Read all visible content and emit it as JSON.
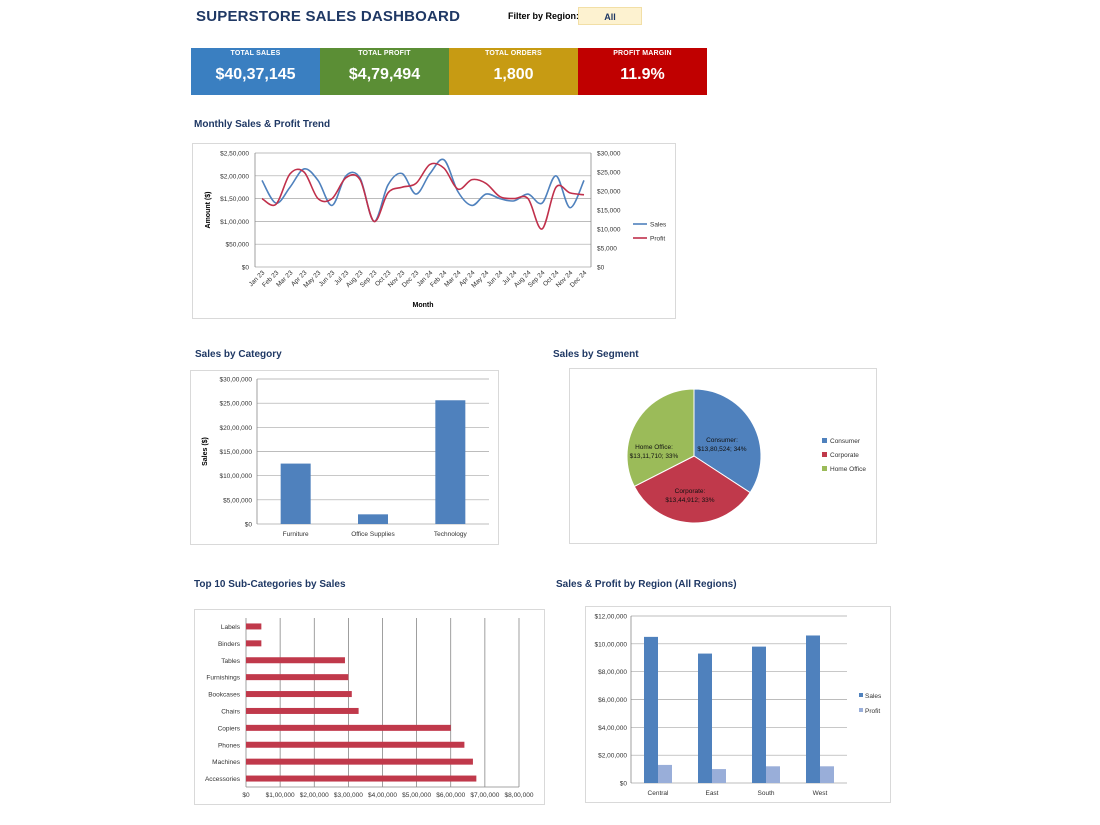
{
  "header": {
    "title": "SUPERSTORE SALES DASHBOARD",
    "filter_label": "Filter by Region:",
    "filter_value": "All"
  },
  "kpis": [
    {
      "label": "TOTAL SALES",
      "value": "$40,37,145",
      "color": "#3a7fc1"
    },
    {
      "label": "TOTAL PROFIT",
      "value": "$4,79,494",
      "color": "#5b8e35"
    },
    {
      "label": "TOTAL ORDERS",
      "value": "1,800",
      "color": "#c79b13"
    },
    {
      "label": "PROFIT MARGIN",
      "value": "11.9%",
      "color": "#c00000"
    }
  ],
  "chart_data": [
    {
      "id": "trend",
      "type": "line",
      "title": "Monthly Sales & Profit Trend",
      "xlabel": "Month",
      "ylabel": "Amount ($)",
      "categories": [
        "Jan 23",
        "Feb 23",
        "Mar 23",
        "Apr 23",
        "May 23",
        "Jun 23",
        "Jul 23",
        "Aug 23",
        "Sep 23",
        "Oct 23",
        "Nov 23",
        "Dec 23",
        "Jan 24",
        "Feb 24",
        "Mar 24",
        "Apr 24",
        "May 24",
        "Jun 24",
        "Jul 24",
        "Aug 24",
        "Sep 24",
        "Oct 24",
        "Nov 24",
        "Dec 24"
      ],
      "y_ticks": [
        "$0",
        "$50,000",
        "$1,00,000",
        "$1,50,000",
        "$2,00,000",
        "$2,50,000"
      ],
      "y2_ticks": [
        "$0",
        "$5,000",
        "$10,000",
        "$15,000",
        "$20,000",
        "$25,000",
        "$30,000"
      ],
      "ylim": [
        0,
        250000
      ],
      "y2lim": [
        0,
        30000
      ],
      "series": [
        {
          "name": "Sales",
          "axis": "left",
          "color": "#4f81bd",
          "values": [
            190000,
            140000,
            175000,
            215000,
            190000,
            135000,
            200000,
            195000,
            100000,
            180000,
            205000,
            160000,
            205000,
            235000,
            165000,
            135000,
            160000,
            150000,
            145000,
            160000,
            140000,
            200000,
            130000,
            190000
          ]
        },
        {
          "name": "Profit",
          "axis": "right",
          "color": "#c0304b",
          "values": [
            18000,
            16500,
            24500,
            25000,
            18000,
            18000,
            23500,
            23000,
            12000,
            19500,
            21000,
            22000,
            27000,
            26000,
            20500,
            23000,
            22000,
            18500,
            18000,
            18000,
            10000,
            21000,
            19500,
            19000
          ]
        }
      ],
      "legend": "right"
    },
    {
      "id": "category",
      "type": "bar",
      "title": "Sales by Category",
      "ylabel": "Sales ($)",
      "categories": [
        "Furniture",
        "Office Supplies",
        "Technology"
      ],
      "values": [
        1250000,
        200000,
        2560000
      ],
      "y_ticks": [
        "$0",
        "$5,00,000",
        "$10,00,000",
        "$15,00,000",
        "$20,00,000",
        "$25,00,000",
        "$30,00,000"
      ],
      "ylim": [
        0,
        3000000
      ],
      "color": "#4f81bd"
    },
    {
      "id": "segment",
      "type": "pie",
      "title": "Sales by Segment",
      "slices": [
        {
          "name": "Consumer",
          "value": 1380524,
          "label": "Consumer:",
          "label2": "$13,80,524; 34%",
          "color": "#4f81bd"
        },
        {
          "name": "Corporate",
          "value": 1344912,
          "label": "Corporate:",
          "label2": "$13,44,912; 33%",
          "color": "#c0394b"
        },
        {
          "name": "Home Office",
          "value": 1311710,
          "label": "Home Office:",
          "label2": "$13,11,710; 33%",
          "color": "#9bbb59"
        }
      ],
      "legend": "right"
    },
    {
      "id": "subcat",
      "type": "bar",
      "orientation": "horizontal",
      "title": "Top 10 Sub-Categories by Sales",
      "categories": [
        "Labels",
        "Binders",
        "Tables",
        "Furnishings",
        "Bookcases",
        "Chairs",
        "Copiers",
        "Phones",
        "Machines",
        "Accessories"
      ],
      "values": [
        45000,
        45000,
        290000,
        300000,
        310000,
        330000,
        600000,
        640000,
        665000,
        675000
      ],
      "x_ticks": [
        "$0",
        "$1,00,000",
        "$2,00,000",
        "$3,00,000",
        "$4,00,000",
        "$5,00,000",
        "$6,00,000",
        "$7,00,000",
        "$8,00,000"
      ],
      "xlim": [
        0,
        800000
      ],
      "color": "#c0394b"
    },
    {
      "id": "region",
      "type": "bar",
      "title": "Sales & Profit by Region (All Regions)",
      "categories": [
        "Central",
        "East",
        "South",
        "West"
      ],
      "series": [
        {
          "name": "Sales",
          "color": "#4f81bd",
          "values": [
            1050000,
            930000,
            980000,
            1060000
          ]
        },
        {
          "name": "Profit",
          "color": "#99aed9",
          "values": [
            130000,
            100000,
            120000,
            120000
          ]
        }
      ],
      "y_ticks": [
        "$0",
        "$2,00,000",
        "$4,00,000",
        "$6,00,000",
        "$8,00,000",
        "$10,00,000",
        "$12,00,000"
      ],
      "ylim": [
        0,
        1200000
      ],
      "legend": "right"
    }
  ]
}
